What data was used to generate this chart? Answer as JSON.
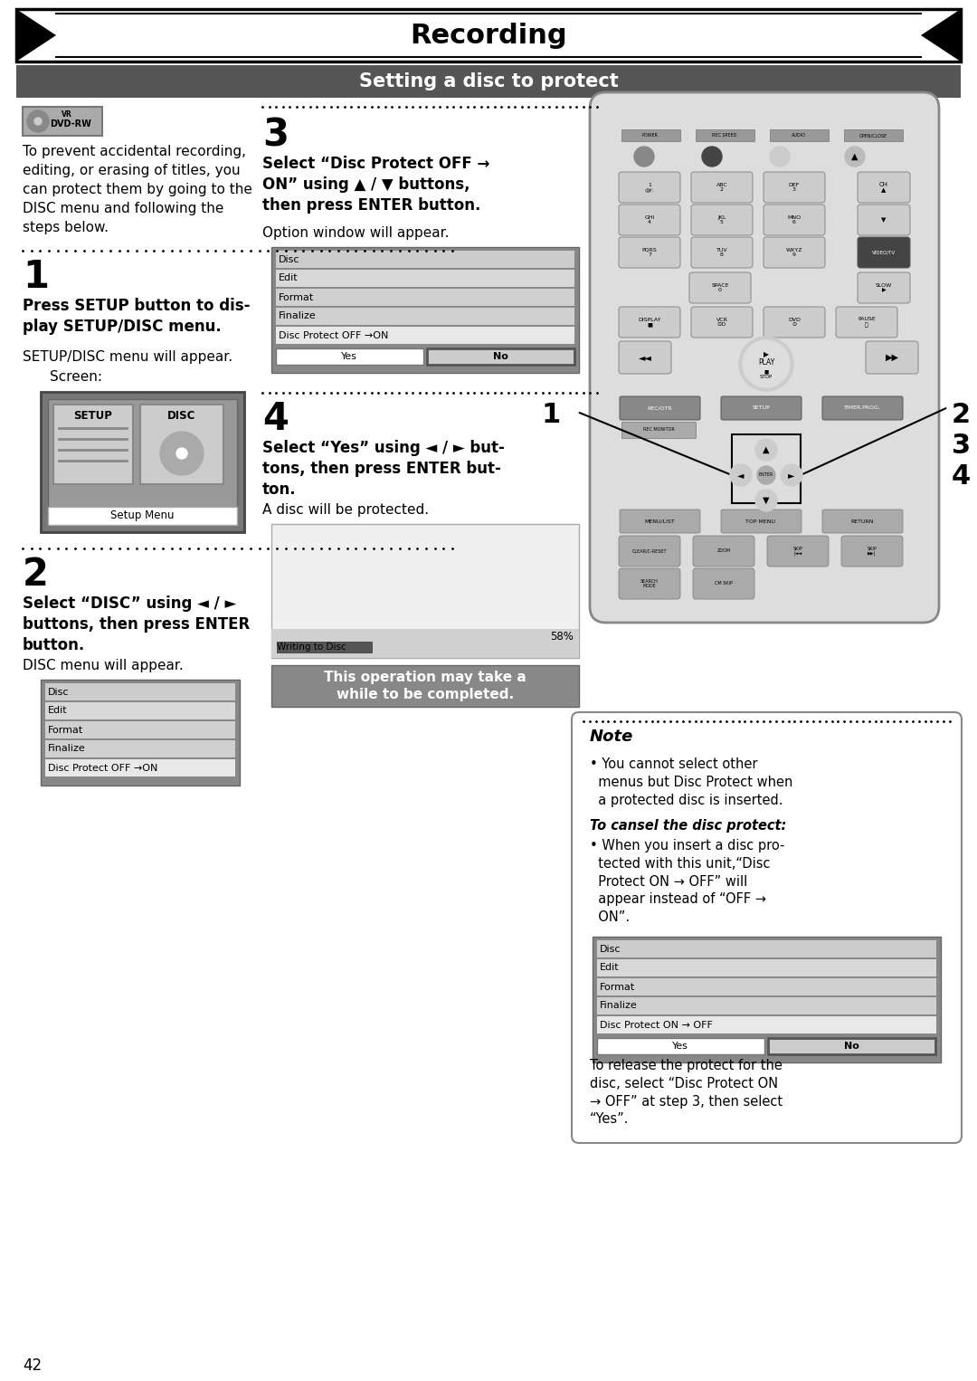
{
  "title": "Recording",
  "subtitle": "Setting a disc to protect",
  "page_number": "42",
  "intro_lines": [
    "To prevent accidental recording,",
    "editing, or erasing of titles, you",
    "can protect them by going to the",
    "DISC menu and following the",
    "steps below."
  ],
  "step1_bold": "Press SETUP button to dis-\nplay SETUP/DISC menu.",
  "step1_sub": "SETUP/DISC menu will appear.",
  "step1_screen": "Screen:",
  "step2_bold": "Select “DISC” using ◄ / ►\nbuttons, then press ENTER\nbutton.",
  "step2_sub": "DISC menu will appear.",
  "step3_bold": "Select “Disc Protect OFF →\nON” using ▲ / ▼ buttons,\nthen press ENTER button.",
  "step3_sub": "Option window will appear.",
  "step4_bold": "Select “Yes” using ◄ / ► but-\ntons, then press ENTER but-\nton.",
  "step4_sub": "A disc will be protected.",
  "warning": "This operation may take a\nwhile to be completed.",
  "note_title": "Note",
  "note_b1": "• You cannot select other\n  menus but Disc Protect when\n  a protected disc is inserted.",
  "note_italic": "To cansel the disc protect:",
  "note_b2": "• When you insert a disc pro-\n  tected with this unit,“Disc\n  Protect ON → OFF” will\n  appear instead of “OFF →\n  ON”.",
  "note_footer": "To release the protect for the\ndisc, select “Disc Protect ON\n→ OFF” at step 3, then select\n“Yes”.",
  "menu1": [
    "Disc",
    "Edit",
    "Format",
    "Finalize",
    "Disc Protect OFF →ON"
  ],
  "menu2": [
    "Disc",
    "Edit",
    "Format",
    "Finalize",
    "Disc Protect ON → OFF"
  ]
}
